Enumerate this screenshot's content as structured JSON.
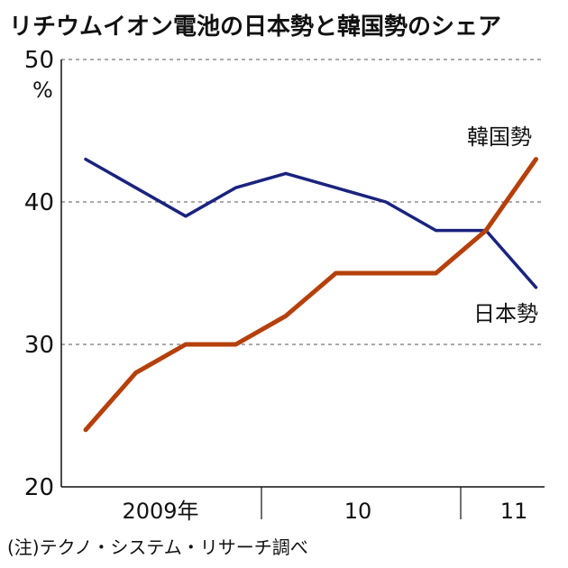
{
  "title": "リチウムイオン電池の日本勢と韓国勢のシェア",
  "note": "(注)テクノ・システム・リサーチ調べ",
  "chart_data": {
    "type": "line",
    "title": "リチウムイオン電池の日本勢と韓国勢のシェア",
    "yunit": "%",
    "ylim": [
      20,
      50
    ],
    "yticks": [
      20,
      30,
      40,
      50
    ],
    "grid": "dashed horizontal at 30, 40, 50",
    "x_groups": [
      "2009年",
      "10",
      "11"
    ],
    "x": [
      "2009-Q1",
      "2009-Q2",
      "2009-Q3",
      "2009-Q4",
      "2010-Q1",
      "2010-Q2",
      "2010-Q3",
      "2010-Q4",
      "2011-Q1",
      "2011-Q2"
    ],
    "series": [
      {
        "name": "日本勢",
        "color": "#1a237e",
        "values": [
          43,
          41,
          39,
          41,
          42,
          41,
          40,
          38,
          38,
          34
        ]
      },
      {
        "name": "韓国勢",
        "color": "#b5400a",
        "values": [
          24,
          28,
          30,
          30,
          32,
          35,
          35,
          35,
          38,
          43
        ]
      }
    ]
  }
}
